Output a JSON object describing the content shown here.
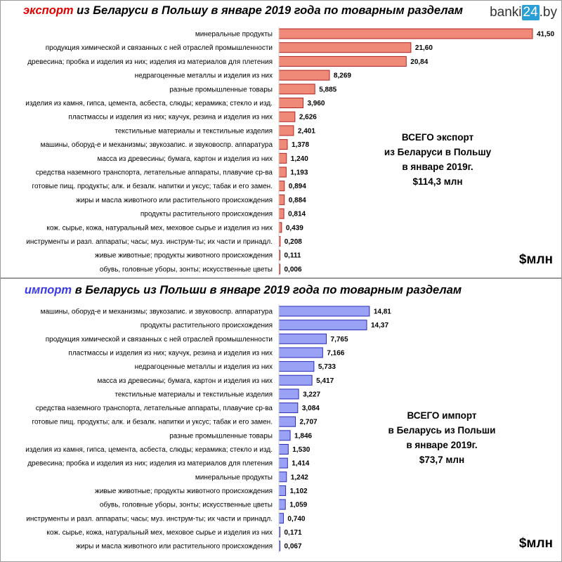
{
  "logo": {
    "pre": "banki",
    "box": "24",
    "post": ".by"
  },
  "colors": {
    "export_fill": "#f08a78",
    "export_stroke": "#b02222",
    "import_fill": "#99a2f5",
    "import_stroke": "#2a2ab8",
    "export_highlight": "#e00000",
    "import_highlight": "#3a3ae6"
  },
  "export": {
    "title_highlight": "экспорт",
    "title_rest": " из Беларуси в Польшу в январе  2019 года по товарным разделам",
    "total_lines": [
      "ВСЕГО экспорт",
      "из Беларуси в Польшу",
      "в январе 2019г.",
      "$114,3 млн"
    ],
    "unit": "$млн"
  },
  "import": {
    "title_highlight": "импорт",
    "title_rest": " в  Беларусь из Польши в январе  2019 года по товарным разделам",
    "total_lines": [
      "ВСЕГО импорт",
      "в Беларусь из Польши",
      "в январе 2019г.",
      "$73,7 млн"
    ],
    "unit": "$млн"
  },
  "chart_data": [
    {
      "type": "bar",
      "orientation": "horizontal",
      "title": "экспорт из Беларуси в Польшу в январе  2019 года по товарным разделам",
      "xlim": [
        0,
        41.5
      ],
      "categories": [
        "минеральные продукты",
        "продукция химической  и связанных  с ней отраслей промышленности",
        "древесина;  пробка и изделия из них; изделия из материалов для плетения",
        "недрагоценные  металлы и изделия из них",
        "разные промышленные товары",
        "изделия из камня, гипса, цемента, асбеста,  слюды; керамика;  стекло и изд.",
        "пластмассы  и изделия из них;  каучук, резина и изделия из них",
        "текстильные материалы и текстильные изделия",
        "машины, оборуд-е  и механизмы;  звукозапис. и звуковоспр. аппаратура",
        "масса  из древесины; бумага, картон и изделия из них",
        "средства  наземного транспорта, летательные аппараты, плавучие ср-ва",
        "готовые пищ. продукты; алк. и безалк. напитки и уксус;  табак и его замен.",
        "жиры и масла животного или растительного происхождения",
        "продукты растительного происхождения",
        "кож. сырье, кожа, натуральный мех,  меховое  сырье и изделия из них",
        "инструменты  и разл. аппараты;  часы;   муз.  инструм-ты;  их части и принадл.",
        "живые животные;  продукты животного происхождения",
        "обувь,  головные уборы,  зонты;  искусственные  цветы"
      ],
      "values": [
        41.5,
        21.6,
        20.84,
        8.269,
        5.885,
        3.96,
        2.626,
        2.401,
        1.378,
        1.24,
        1.193,
        0.894,
        0.884,
        0.814,
        0.439,
        0.208,
        0.111,
        0.006
      ],
      "value_labels": [
        "41,50",
        "21,60",
        "20,84",
        "8,269",
        "5,885",
        "3,960",
        "2,626",
        "2,401",
        "1,378",
        "1,240",
        "1,193",
        "0,894",
        "0,884",
        "0,814",
        "0,439",
        "0,208",
        "0,111",
        "0,006"
      ]
    },
    {
      "type": "bar",
      "orientation": "horizontal",
      "title": "импорт в  Беларусь из Польши в январе  2019 года по товарным разделам",
      "xlim": [
        0,
        41.5
      ],
      "categories": [
        "машины, оборуд-е  и механизмы;  звукозапис. и звуковоспр. аппаратура",
        "продукты растительного происхождения",
        "продукция химической  и связанных  с ней отраслей промышленности",
        "пластмассы  и изделия из них;  каучук, резина и изделия из них",
        "недрагоценные  металлы и изделия из них",
        "масса  из древесины; бумага, картон и изделия из них",
        "текстильные материалы и текстильные изделия",
        "средства  наземного транспорта, летательные аппараты, плавучие ср-ва",
        "готовые пищ. продукты; алк. и безалк. напитки и уксус;  табак и его замен.",
        "разные промышленные товары",
        "изделия из камня, гипса, цемента, асбеста,  слюды; керамика;  стекло и изд.",
        "древесина;  пробка и изделия из них; изделия из материалов для плетения",
        "минеральные продукты",
        "живые животные;  продукты животного происхождения",
        "обувь,  головные уборы,  зонты;  искусственные  цветы",
        "инструменты  и разл. аппараты;  часы;   муз.  инструм-ты;  их части и принадл.",
        "кож. сырье, кожа, натуральный мех,  меховое  сырье и изделия из них",
        "жиры и масла животного или растительного происхождения"
      ],
      "values": [
        14.81,
        14.37,
        7.765,
        7.166,
        5.733,
        5.417,
        3.227,
        3.084,
        2.707,
        1.846,
        1.53,
        1.414,
        1.242,
        1.102,
        1.059,
        0.74,
        0.171,
        0.067
      ],
      "value_labels": [
        "14,81",
        "14,37",
        "7,765",
        "7,166",
        "5,733",
        "5,417",
        "3,227",
        "3,084",
        "2,707",
        "1,846",
        "1,530",
        "1,414",
        "1,242",
        "1,102",
        "1,059",
        "0,740",
        "0,171",
        "0,067"
      ]
    }
  ]
}
